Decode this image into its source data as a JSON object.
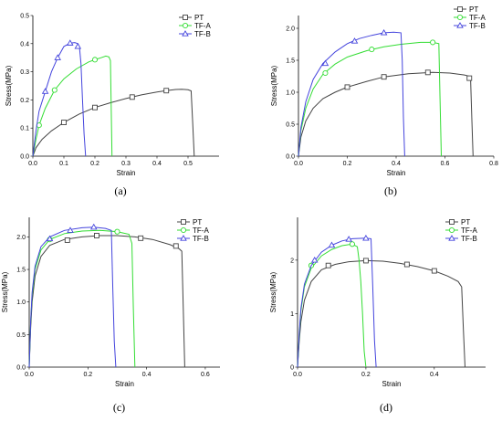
{
  "chart_data": [
    {
      "type": "line",
      "panel_label": "(a)",
      "xlabel": "Strain",
      "ylabel": "Stress(MPa)",
      "xlim": [
        0,
        0.6
      ],
      "ylim": [
        0,
        0.5
      ],
      "x_ticks": [
        "0.0",
        "0.1",
        "0.2",
        "0.3",
        "0.4",
        "0.5"
      ],
      "y_ticks": [
        "0.0",
        "0.1",
        "0.2",
        "0.3",
        "0.4",
        "0.5"
      ],
      "legend_position": "top-right",
      "grid": false,
      "series": [
        {
          "name": "PT",
          "color": "#444444",
          "marker": "square",
          "x": [
            0,
            0.01,
            0.03,
            0.06,
            0.1,
            0.15,
            0.2,
            0.25,
            0.3,
            0.35,
            0.4,
            0.43,
            0.46,
            0.48,
            0.5,
            0.51,
            0.515,
            0.52
          ],
          "y": [
            0,
            0.03,
            0.06,
            0.09,
            0.12,
            0.15,
            0.173,
            0.19,
            0.205,
            0.218,
            0.228,
            0.233,
            0.237,
            0.238,
            0.236,
            0.232,
            0.12,
            0
          ],
          "markers_x": [
            0.1,
            0.2,
            0.32,
            0.43
          ],
          "markers_y": [
            0.12,
            0.173,
            0.21,
            0.233
          ]
        },
        {
          "name": "TF-A",
          "color": "#33dd33",
          "marker": "circle",
          "x": [
            0,
            0.01,
            0.02,
            0.04,
            0.07,
            0.1,
            0.14,
            0.18,
            0.2,
            0.22,
            0.235,
            0.245,
            0.25,
            0.252,
            0.255
          ],
          "y": [
            0,
            0.06,
            0.11,
            0.17,
            0.235,
            0.275,
            0.31,
            0.335,
            0.343,
            0.35,
            0.356,
            0.353,
            0.34,
            0.2,
            0
          ],
          "markers_x": [
            0.02,
            0.07,
            0.2
          ],
          "markers_y": [
            0.11,
            0.235,
            0.343
          ]
        },
        {
          "name": "TF-B",
          "color": "#4444dd",
          "marker": "triangle",
          "x": [
            0,
            0.01,
            0.02,
            0.04,
            0.06,
            0.08,
            0.1,
            0.12,
            0.135,
            0.145,
            0.15,
            0.155,
            0.16,
            0.165,
            0.17
          ],
          "y": [
            0,
            0.09,
            0.16,
            0.23,
            0.3,
            0.35,
            0.39,
            0.402,
            0.404,
            0.4,
            0.39,
            0.33,
            0.2,
            0.08,
            0
          ],
          "markers_x": [
            0.04,
            0.08,
            0.12,
            0.145
          ],
          "markers_y": [
            0.23,
            0.35,
            0.402,
            0.39
          ]
        }
      ]
    },
    {
      "type": "line",
      "panel_label": "(b)",
      "xlabel": "Strain",
      "ylabel": "Stress(MPa)",
      "xlim": [
        0,
        0.8
      ],
      "ylim": [
        0,
        2.2
      ],
      "x_ticks": [
        "0.0",
        "0.2",
        "0.4",
        "0.6",
        "0.8"
      ],
      "y_ticks": [
        "0.0",
        "0.5",
        "1.0",
        "1.5",
        "2.0"
      ],
      "legend_position": "top-right",
      "grid": false,
      "series": [
        {
          "name": "PT",
          "color": "#444444",
          "marker": "square",
          "x": [
            0,
            0.01,
            0.03,
            0.06,
            0.1,
            0.15,
            0.2,
            0.28,
            0.35,
            0.45,
            0.55,
            0.62,
            0.68,
            0.7,
            0.705,
            0.71,
            0.715
          ],
          "y": [
            0,
            0.3,
            0.55,
            0.75,
            0.9,
            1.0,
            1.08,
            1.17,
            1.24,
            1.29,
            1.31,
            1.3,
            1.27,
            1.25,
            1.2,
            0.6,
            0
          ],
          "markers_x": [
            0.2,
            0.35,
            0.53,
            0.7
          ],
          "markers_y": [
            1.08,
            1.24,
            1.31,
            1.22
          ]
        },
        {
          "name": "TF-A",
          "color": "#33dd33",
          "marker": "circle",
          "x": [
            0,
            0.01,
            0.03,
            0.06,
            0.1,
            0.15,
            0.2,
            0.28,
            0.35,
            0.42,
            0.5,
            0.55,
            0.575,
            0.58,
            0.585
          ],
          "y": [
            0,
            0.4,
            0.75,
            1.05,
            1.28,
            1.44,
            1.55,
            1.65,
            1.71,
            1.75,
            1.78,
            1.78,
            1.76,
            0.9,
            0
          ],
          "markers_x": [
            0.11,
            0.3,
            0.55
          ],
          "markers_y": [
            1.3,
            1.67,
            1.78
          ]
        },
        {
          "name": "TF-B",
          "color": "#4444dd",
          "marker": "triangle",
          "x": [
            0,
            0.01,
            0.03,
            0.06,
            0.1,
            0.15,
            0.2,
            0.25,
            0.3,
            0.35,
            0.39,
            0.42,
            0.425,
            0.43,
            0.435
          ],
          "y": [
            0,
            0.45,
            0.85,
            1.2,
            1.45,
            1.63,
            1.76,
            1.84,
            1.89,
            1.93,
            1.94,
            1.93,
            1.5,
            0.6,
            0
          ],
          "markers_x": [
            0.11,
            0.23,
            0.35
          ],
          "markers_y": [
            1.45,
            1.8,
            1.93
          ]
        }
      ]
    },
    {
      "type": "line",
      "panel_label": "(c)",
      "xlabel": "Strain",
      "ylabel": "Stress(MPa)",
      "xlim": [
        0,
        0.65
      ],
      "ylim": [
        0,
        2.3
      ],
      "x_ticks": [
        "0.0",
        "0.2",
        "0.4",
        "0.6"
      ],
      "y_ticks": [
        "0.0",
        "0.5",
        "1.0",
        "1.5",
        "2.0"
      ],
      "legend_position": "top-right",
      "grid": false,
      "series": [
        {
          "name": "PT",
          "color": "#444444",
          "marker": "square",
          "x": [
            0,
            0.005,
            0.01,
            0.02,
            0.04,
            0.07,
            0.12,
            0.18,
            0.24,
            0.3,
            0.36,
            0.42,
            0.48,
            0.51,
            0.52,
            0.525,
            0.53
          ],
          "y": [
            0,
            0.6,
            1.0,
            1.4,
            1.7,
            1.87,
            1.96,
            2.0,
            2.02,
            2.02,
            2.0,
            1.96,
            1.88,
            1.82,
            1.78,
            0.9,
            0
          ],
          "markers_x": [
            0.13,
            0.23,
            0.38,
            0.5
          ],
          "markers_y": [
            1.95,
            2.02,
            1.98,
            1.86
          ]
        },
        {
          "name": "TF-A",
          "color": "#33dd33",
          "marker": "circle",
          "x": [
            0,
            0.005,
            0.01,
            0.02,
            0.04,
            0.07,
            0.12,
            0.18,
            0.24,
            0.3,
            0.34,
            0.35,
            0.355,
            0.36
          ],
          "y": [
            0,
            0.7,
            1.1,
            1.5,
            1.8,
            1.96,
            2.05,
            2.09,
            2.1,
            2.08,
            2.04,
            1.9,
            0.9,
            0
          ],
          "markers_x": [
            0.07,
            0.3
          ],
          "markers_y": [
            1.96,
            2.08
          ]
        },
        {
          "name": "TF-B",
          "color": "#4444dd",
          "marker": "triangle",
          "x": [
            0,
            0.005,
            0.01,
            0.02,
            0.04,
            0.07,
            0.12,
            0.18,
            0.22,
            0.26,
            0.28,
            0.285,
            0.29,
            0.295
          ],
          "y": [
            0,
            0.7,
            1.15,
            1.55,
            1.85,
            2.0,
            2.1,
            2.14,
            2.15,
            2.13,
            2.1,
            1.2,
            0.4,
            0
          ],
          "markers_x": [
            0.07,
            0.14,
            0.22
          ],
          "markers_y": [
            1.97,
            2.1,
            2.15
          ]
        }
      ]
    },
    {
      "type": "line",
      "panel_label": "(d)",
      "xlabel": "Strain",
      "ylabel": "Stress(MPa)",
      "xlim": [
        0,
        0.55
      ],
      "ylim": [
        0,
        2.8
      ],
      "x_ticks": [
        "0.0",
        "0.2",
        "0.4"
      ],
      "y_ticks": [
        "0",
        "1",
        "2"
      ],
      "legend_position": "top-right",
      "grid": false,
      "series": [
        {
          "name": "PT",
          "color": "#444444",
          "marker": "square",
          "x": [
            0,
            0.005,
            0.01,
            0.02,
            0.04,
            0.07,
            0.11,
            0.15,
            0.2,
            0.25,
            0.3,
            0.35,
            0.4,
            0.44,
            0.47,
            0.48,
            0.485,
            0.49
          ],
          "y": [
            0,
            0.5,
            0.85,
            1.25,
            1.6,
            1.82,
            1.92,
            1.97,
            1.99,
            1.98,
            1.94,
            1.88,
            1.8,
            1.7,
            1.6,
            1.5,
            0.7,
            0
          ],
          "markers_x": [
            0.09,
            0.2,
            0.32,
            0.4
          ],
          "markers_y": [
            1.9,
            1.99,
            1.92,
            1.8
          ]
        },
        {
          "name": "TF-A",
          "color": "#33dd33",
          "marker": "circle",
          "x": [
            0,
            0.005,
            0.01,
            0.02,
            0.04,
            0.07,
            0.1,
            0.13,
            0.16,
            0.175,
            0.18,
            0.185,
            0.19,
            0.195,
            0.2
          ],
          "y": [
            0,
            0.6,
            1.05,
            1.5,
            1.85,
            2.08,
            2.2,
            2.27,
            2.3,
            2.25,
            2.0,
            1.6,
            1.0,
            0.3,
            0
          ],
          "markers_x": [
            0.04,
            0.16
          ],
          "markers_y": [
            1.9,
            2.3
          ]
        },
        {
          "name": "TF-B",
          "color": "#4444dd",
          "marker": "triangle",
          "x": [
            0,
            0.005,
            0.01,
            0.02,
            0.04,
            0.07,
            0.1,
            0.13,
            0.16,
            0.2,
            0.215,
            0.22,
            0.225,
            0.23
          ],
          "y": [
            0,
            0.65,
            1.1,
            1.55,
            1.9,
            2.15,
            2.28,
            2.36,
            2.4,
            2.41,
            2.4,
            1.5,
            0.5,
            0
          ],
          "markers_x": [
            0.05,
            0.1,
            0.15,
            0.2
          ],
          "markers_y": [
            2.0,
            2.28,
            2.39,
            2.41
          ]
        }
      ]
    }
  ]
}
